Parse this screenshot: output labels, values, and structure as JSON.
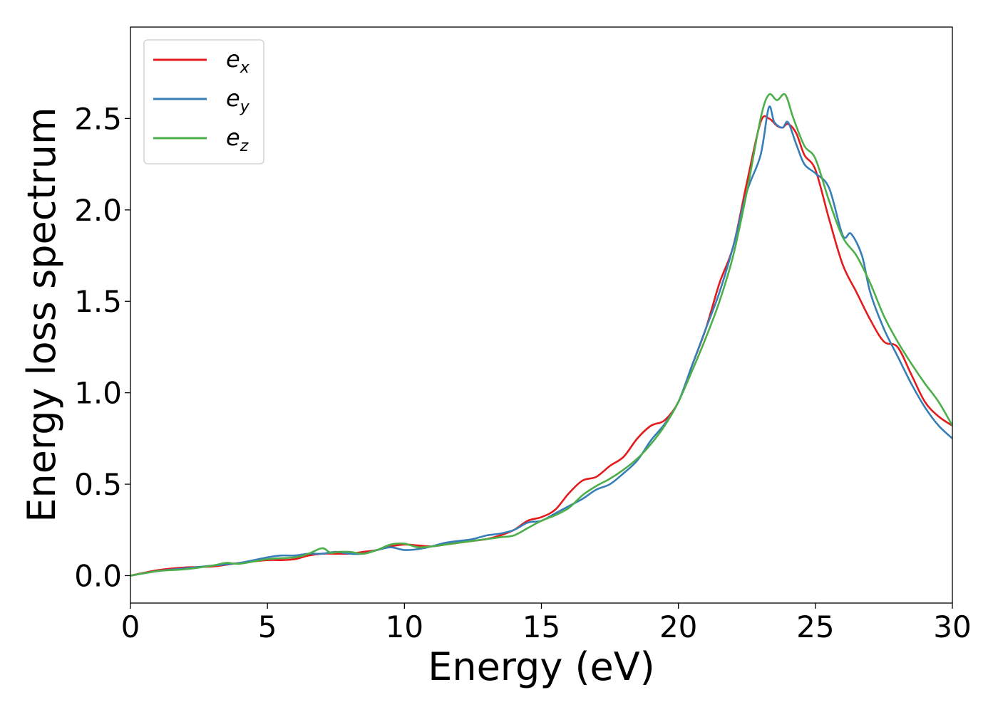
{
  "chart_data": {
    "type": "line",
    "title": "",
    "xlabel": "Energy (eV)",
    "ylabel": "Energy loss spectrum",
    "xlim": [
      0,
      30
    ],
    "ylim": [
      -0.15,
      3.0
    ],
    "xticks": [
      0,
      5,
      10,
      15,
      20,
      25,
      30
    ],
    "yticks": [
      0.0,
      0.5,
      1.0,
      1.5,
      2.0,
      2.5
    ],
    "xtick_labels": [
      "0",
      "5",
      "10",
      "15",
      "20",
      "25",
      "30"
    ],
    "ytick_labels": [
      "0.0",
      "0.5",
      "1.0",
      "1.5",
      "2.0",
      "2.5"
    ],
    "grid": false,
    "legend_position": "top-left",
    "series": [
      {
        "name": "e_x",
        "label_base": "e",
        "label_sub": "x",
        "color": "#e41a1c",
        "x": [
          0,
          1,
          2,
          3,
          4,
          5,
          5.5,
          6,
          6.5,
          7,
          7.5,
          8,
          8.5,
          9,
          9.5,
          10,
          10.5,
          11,
          11.5,
          12,
          12.5,
          13,
          13.5,
          14,
          14.5,
          15,
          15.5,
          16,
          16.5,
          17,
          17.5,
          18,
          18.5,
          19,
          19.5,
          20,
          20.5,
          21,
          21.5,
          22,
          22.5,
          23,
          23.3,
          23.6,
          23.8,
          24,
          24.3,
          24.6,
          25,
          25.5,
          26,
          26.5,
          27,
          27.5,
          28,
          28.5,
          29,
          29.5,
          30
        ],
        "y": [
          0.0,
          0.03,
          0.045,
          0.05,
          0.07,
          0.085,
          0.085,
          0.09,
          0.11,
          0.12,
          0.12,
          0.12,
          0.13,
          0.14,
          0.16,
          0.17,
          0.165,
          0.16,
          0.17,
          0.18,
          0.19,
          0.2,
          0.22,
          0.25,
          0.3,
          0.32,
          0.36,
          0.45,
          0.52,
          0.54,
          0.6,
          0.65,
          0.75,
          0.82,
          0.85,
          0.95,
          1.15,
          1.35,
          1.6,
          1.8,
          2.15,
          2.48,
          2.5,
          2.46,
          2.45,
          2.47,
          2.42,
          2.3,
          2.22,
          1.95,
          1.7,
          1.55,
          1.4,
          1.28,
          1.25,
          1.1,
          0.95,
          0.87,
          0.82
        ]
      },
      {
        "name": "e_y",
        "label_base": "e",
        "label_sub": "y",
        "color": "#377eb8",
        "x": [
          0,
          1,
          2,
          3,
          4,
          5,
          5.5,
          6,
          6.5,
          7,
          7.5,
          8,
          8.5,
          9,
          9.5,
          10,
          10.5,
          11,
          11.5,
          12,
          12.5,
          13,
          13.5,
          14,
          14.5,
          15,
          15.5,
          16,
          16.5,
          17,
          17.5,
          18,
          18.5,
          19,
          19.5,
          20,
          20.5,
          21,
          21.5,
          22,
          22.5,
          23,
          23.3,
          23.5,
          23.8,
          24,
          24.3,
          24.6,
          25,
          25.5,
          26,
          26.3,
          26.7,
          27,
          27.5,
          28,
          28.5,
          29,
          29.5,
          30
        ],
        "y": [
          0.0,
          0.025,
          0.04,
          0.055,
          0.07,
          0.1,
          0.11,
          0.11,
          0.12,
          0.12,
          0.13,
          0.12,
          0.12,
          0.14,
          0.155,
          0.14,
          0.145,
          0.16,
          0.18,
          0.19,
          0.2,
          0.22,
          0.23,
          0.25,
          0.29,
          0.3,
          0.34,
          0.38,
          0.42,
          0.47,
          0.5,
          0.56,
          0.63,
          0.74,
          0.83,
          0.95,
          1.15,
          1.35,
          1.55,
          1.8,
          2.1,
          2.3,
          2.56,
          2.48,
          2.45,
          2.48,
          2.36,
          2.25,
          2.2,
          2.12,
          1.86,
          1.87,
          1.75,
          1.55,
          1.35,
          1.2,
          1.05,
          0.92,
          0.82,
          0.75
        ]
      },
      {
        "name": "e_z",
        "label_base": "e",
        "label_sub": "z",
        "color": "#4daf4a",
        "x": [
          0,
          1,
          2,
          3,
          3.5,
          4,
          5,
          6,
          6.5,
          7,
          7.3,
          7.6,
          8,
          8.5,
          9,
          9.5,
          10,
          10.5,
          11,
          11.5,
          12,
          12.5,
          13,
          13.5,
          14,
          14.5,
          15,
          15.5,
          16,
          16.5,
          17,
          17.5,
          18,
          18.5,
          19,
          19.5,
          20,
          20.5,
          21,
          21.5,
          22,
          22.5,
          23,
          23.3,
          23.6,
          23.9,
          24.2,
          24.6,
          25,
          25.5,
          26,
          26.5,
          27,
          27.5,
          28,
          28.5,
          29,
          29.5,
          30
        ],
        "y": [
          0.0,
          0.025,
          0.035,
          0.055,
          0.07,
          0.065,
          0.09,
          0.1,
          0.12,
          0.15,
          0.125,
          0.13,
          0.13,
          0.12,
          0.14,
          0.17,
          0.175,
          0.155,
          0.16,
          0.17,
          0.18,
          0.19,
          0.2,
          0.21,
          0.22,
          0.26,
          0.3,
          0.33,
          0.37,
          0.44,
          0.49,
          0.53,
          0.58,
          0.64,
          0.72,
          0.82,
          0.95,
          1.12,
          1.3,
          1.5,
          1.75,
          2.1,
          2.5,
          2.63,
          2.6,
          2.63,
          2.5,
          2.35,
          2.28,
          2.05,
          1.85,
          1.75,
          1.6,
          1.42,
          1.28,
          1.16,
          1.05,
          0.95,
          0.82
        ]
      }
    ]
  }
}
